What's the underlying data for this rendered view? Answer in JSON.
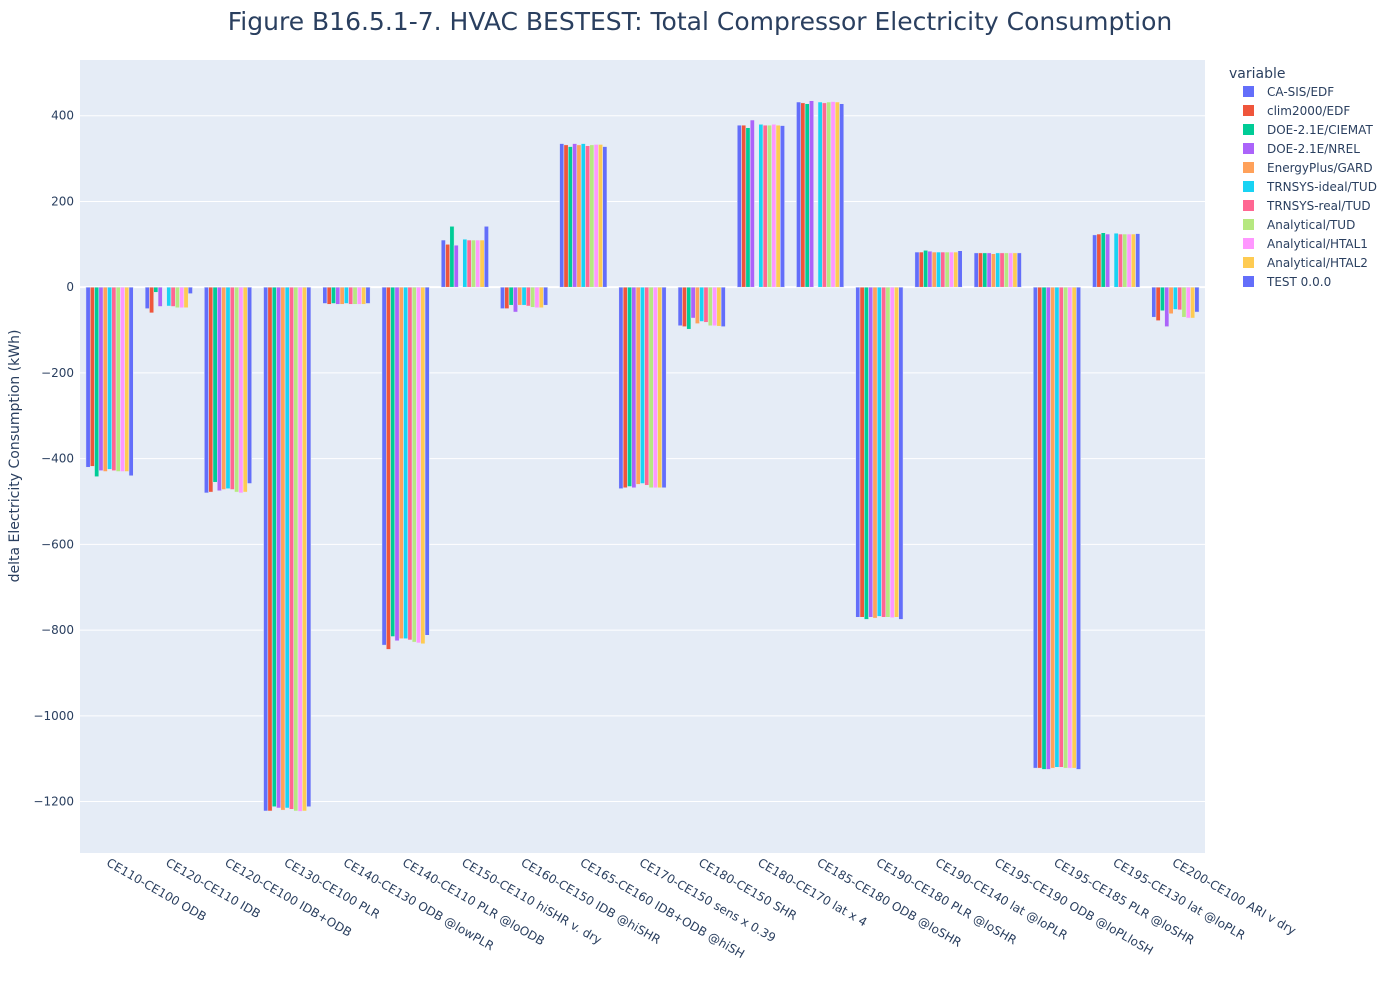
{
  "chart_data": {
    "type": "bar",
    "title": "Figure B16.5.1-7. HVAC BESTEST: Total Compressor Electricity Consumption",
    "xlabel": "",
    "ylabel": "delta Electricity Consumption  (kWh)",
    "ylim": [
      -1320,
      530
    ],
    "yticks": [
      400,
      200,
      0,
      -200,
      -400,
      -600,
      -800,
      -1000,
      -1200
    ],
    "ytick_labels": [
      "400",
      "200",
      "0",
      "−200",
      "−400",
      "−600",
      "−800",
      "−1000",
      "−1200"
    ],
    "grid": true,
    "legend_title": "variable",
    "legend_position": "right",
    "categories": [
      "CE110-CE100 ODB",
      "CE120-CE110 IDB",
      "CE120-CE100 IDB+ODB",
      "CE130-CE100 PLR",
      "CE140-CE130 ODB @lowPLR",
      "CE140-CE110 PLR @loODB",
      "CE150-CE110 hiSHR v. dry",
      "CE160-CE150 IDB @hiSHR",
      "CE165-CE160 IDB+ODB @hiSH",
      "CE170-CE150 sens x 0.39",
      "CE180-CE150 SHR",
      "CE180-CE170 lat x 4",
      "CE185-CE180 ODB @loSHR",
      "CE190-CE180 PLR @loSHR",
      "CE190-CE140 lat @loPLR",
      "CE195-CE190 ODB @loPLloSH",
      "CE195-CE185 PLR @loSHR",
      "CE195-CE130 lat @loPLR",
      "CE200-CE100 ARI v dry"
    ],
    "series": [
      {
        "name": "CA-SIS/EDF",
        "color": "#636efa",
        "values": [
          -420,
          -50,
          -480,
          -1222,
          -38,
          -835,
          110,
          -50,
          335,
          -470,
          -90,
          378,
          432,
          -770,
          82,
          80,
          -1122,
          122,
          -70
        ]
      },
      {
        "name": "clim2000/EDF",
        "color": "#EF553B",
        "values": [
          -418,
          -60,
          -478,
          -1222,
          -40,
          -845,
          100,
          -50,
          332,
          -468,
          -92,
          378,
          430,
          -770,
          82,
          80,
          -1122,
          124,
          -78
        ]
      },
      {
        "name": "DOE-2.1E/CIEMAT",
        "color": "#00cc96",
        "values": [
          -442,
          -12,
          -455,
          -1212,
          -38,
          -815,
          142,
          -42,
          328,
          -465,
          -98,
          372,
          428,
          -775,
          86,
          80,
          -1125,
          127,
          -55
        ]
      },
      {
        "name": "DOE-2.1E/NREL",
        "color": "#ab63fa",
        "values": [
          -428,
          -45,
          -475,
          -1215,
          -40,
          -825,
          98,
          -58,
          335,
          -468,
          -72,
          390,
          435,
          -770,
          84,
          80,
          -1125,
          124,
          -92
        ]
      },
      {
        "name": "EnergyPlus/GARD",
        "color": "#FFA15A",
        "values": [
          -430,
          0,
          -472,
          -1220,
          -40,
          -820,
          0,
          -42,
          332,
          -460,
          -85,
          0,
          0,
          -772,
          82,
          78,
          -1122,
          0,
          -62
        ]
      },
      {
        "name": "TRNSYS-ideal/TUD",
        "color": "#19d3f3",
        "values": [
          -425,
          -44,
          -470,
          -1215,
          -38,
          -820,
          112,
          -42,
          335,
          -458,
          -80,
          380,
          432,
          -768,
          82,
          80,
          -1120,
          126,
          -52
        ]
      },
      {
        "name": "TRNSYS-real/TUD",
        "color": "#FF6692",
        "values": [
          -428,
          -45,
          -472,
          -1218,
          -40,
          -823,
          110,
          -44,
          330,
          -462,
          -82,
          378,
          430,
          -770,
          82,
          80,
          -1120,
          124,
          -53
        ]
      },
      {
        "name": "Analytical/TUD",
        "color": "#B6E880",
        "values": [
          -430,
          -48,
          -478,
          -1222,
          -40,
          -828,
          110,
          -47,
          332,
          -468,
          -90,
          378,
          432,
          -770,
          82,
          80,
          -1122,
          124,
          -70
        ]
      },
      {
        "name": "Analytical/HTAL1",
        "color": "#FF97FF",
        "values": [
          -430,
          -48,
          -480,
          -1223,
          -40,
          -830,
          110,
          -48,
          333,
          -468,
          -90,
          380,
          433,
          -771,
          82,
          80,
          -1122,
          124,
          -72
        ]
      },
      {
        "name": "Analytical/HTAL2",
        "color": "#FECB52",
        "values": [
          -430,
          -48,
          -478,
          -1222,
          -40,
          -832,
          110,
          -48,
          333,
          -468,
          -91,
          378,
          432,
          -770,
          82,
          80,
          -1122,
          124,
          -72
        ]
      },
      {
        "name": "TEST 0.0.0",
        "color": "#636efa",
        "values": [
          -440,
          -15,
          -458,
          -1212,
          -38,
          -812,
          142,
          -42,
          328,
          -468,
          -92,
          377,
          428,
          -775,
          85,
          80,
          -1125,
          125,
          -58
        ]
      }
    ]
  }
}
